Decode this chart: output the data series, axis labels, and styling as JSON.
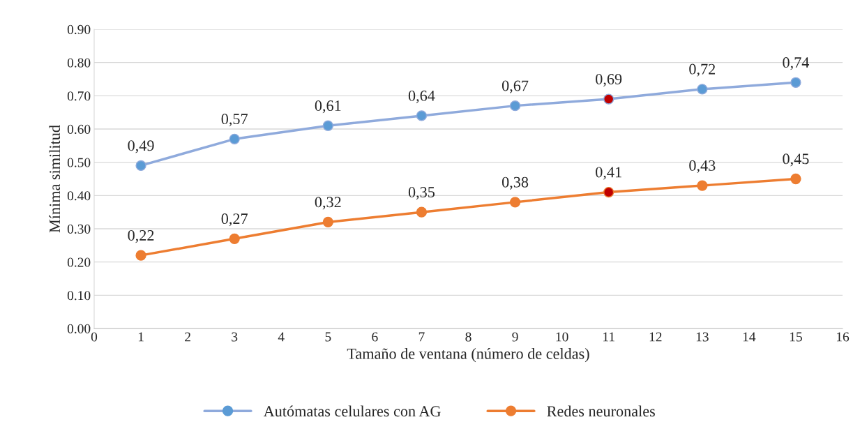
{
  "chart_data": {
    "type": "line",
    "xlabel": "Tamaño de ventana (número de celdas)",
    "ylabel": "Mínima similitud",
    "x": [
      1,
      3,
      5,
      7,
      9,
      11,
      13,
      15
    ],
    "series": [
      {
        "name": "Autómatas celulares con AG",
        "color": "#8faadc",
        "colors": [
          "#5b9bd5",
          "#5b9bd5",
          "#5b9bd5",
          "#5b9bd5",
          "#5b9bd5",
          "#c00000",
          "#5b9bd5",
          "#5b9bd5"
        ],
        "values": [
          0.49,
          0.57,
          0.61,
          0.64,
          0.67,
          0.69,
          0.72,
          0.74
        ],
        "value_labels": [
          "0,49",
          "0,57",
          "0,61",
          "0,64",
          "0,67",
          "0,69",
          "0,72",
          "0,74"
        ]
      },
      {
        "name": "Redes neuronales",
        "color": "#ed7d31",
        "colors": [
          "#ed7d31",
          "#ed7d31",
          "#ed7d31",
          "#ed7d31",
          "#ed7d31",
          "#c00000",
          "#ed7d31",
          "#ed7d31"
        ],
        "values": [
          0.22,
          0.27,
          0.32,
          0.35,
          0.38,
          0.41,
          0.43,
          0.45
        ],
        "value_labels": [
          "0,22",
          "0,27",
          "0,32",
          "0,35",
          "0,38",
          "0,41",
          "0,43",
          "0,45"
        ]
      }
    ],
    "xlim": [
      0,
      16
    ],
    "xticks": [
      0,
      1,
      2,
      3,
      4,
      5,
      6,
      7,
      8,
      9,
      10,
      11,
      12,
      13,
      14,
      15,
      16
    ],
    "ylim": [
      0,
      0.9
    ],
    "yticks": [
      {
        "value": 0,
        "label": "0.00"
      },
      {
        "value": 0.1,
        "label": "0.10"
      },
      {
        "value": 0.2,
        "label": "0.20"
      },
      {
        "value": 0.3,
        "label": "0.30"
      },
      {
        "value": 0.4,
        "label": "0.40"
      },
      {
        "value": 0.5,
        "label": "0.50"
      },
      {
        "value": 0.6,
        "label": "0.60"
      },
      {
        "value": 0.7,
        "label": "0.70"
      },
      {
        "value": 0.8,
        "label": "0.80"
      },
      {
        "value": 0.9,
        "label": "0.90"
      }
    ],
    "grid": "y",
    "legend": "bottom",
    "marker": "circle",
    "line_style": "solid"
  }
}
